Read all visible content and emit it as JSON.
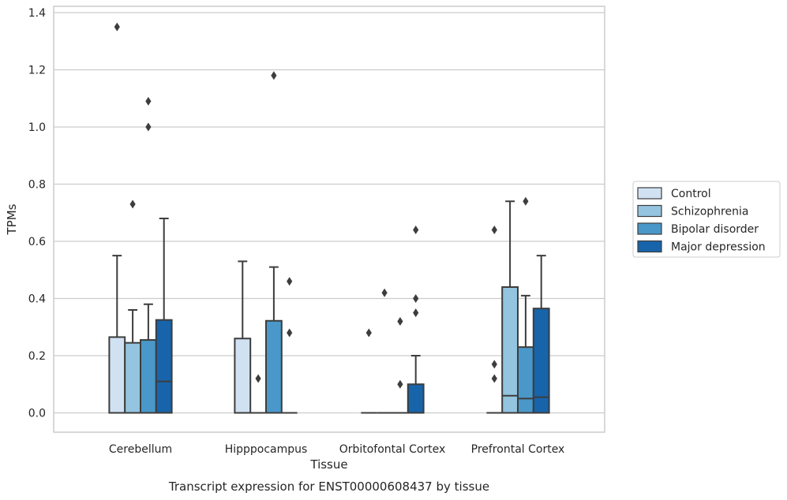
{
  "chart_data": {
    "type": "box",
    "title": "",
    "caption": "Transcript expression for ENST00000608437 by tissue",
    "xlabel": "Tissue",
    "ylabel": "TPMs",
    "ylim": [
      -0.065,
      1.42
    ],
    "yticks": [
      0.0,
      0.2,
      0.4,
      0.6,
      0.8,
      1.0,
      1.2,
      1.4
    ],
    "ytick_labels": [
      "0.0",
      "0.2",
      "0.4",
      "0.6",
      "0.8",
      "1.0",
      "1.2",
      "1.4"
    ],
    "grid": true,
    "legend_position": "right",
    "categories": [
      "Cerebellum",
      "Hipppocampus",
      "Orbitofontal Cortex",
      "Prefrontal Cortex"
    ],
    "series": [
      {
        "name": "Control",
        "color": "#d0e1f2",
        "boxes": [
          {
            "q1": 0.0,
            "median": 0.0,
            "q3": 0.265,
            "whislo": 0.0,
            "whishi": 0.55,
            "fliers": [
              1.35
            ]
          },
          {
            "q1": 0.0,
            "median": 0.0,
            "q3": 0.26,
            "whislo": 0.0,
            "whishi": 0.53,
            "fliers": []
          },
          {
            "q1": 0.0,
            "median": 0.0,
            "q3": 0.0,
            "whislo": 0.0,
            "whishi": 0.0,
            "fliers": [
              0.28
            ]
          },
          {
            "q1": 0.0,
            "median": 0.0,
            "q3": 0.0,
            "whislo": 0.0,
            "whishi": 0.0,
            "fliers": [
              0.64,
              0.17,
              0.12
            ]
          }
        ]
      },
      {
        "name": "Schizophrenia",
        "color": "#94c4df",
        "boxes": [
          {
            "q1": 0.0,
            "median": 0.0,
            "q3": 0.245,
            "whislo": 0.0,
            "whishi": 0.36,
            "fliers": [
              0.73
            ]
          },
          {
            "q1": 0.0,
            "median": 0.0,
            "q3": 0.0,
            "whislo": 0.0,
            "whishi": 0.0,
            "fliers": [
              0.12
            ]
          },
          {
            "q1": 0.0,
            "median": 0.0,
            "q3": 0.0,
            "whislo": 0.0,
            "whishi": 0.0,
            "fliers": [
              0.42
            ]
          },
          {
            "q1": 0.0,
            "median": 0.06,
            "q3": 0.44,
            "whislo": 0.0,
            "whishi": 0.74,
            "fliers": []
          }
        ]
      },
      {
        "name": "Bipolar disorder",
        "color": "#4a98c9",
        "boxes": [
          {
            "q1": 0.0,
            "median": 0.0,
            "q3": 0.255,
            "whislo": 0.0,
            "whishi": 0.38,
            "fliers": [
              1.09,
              1.0
            ]
          },
          {
            "q1": 0.0,
            "median": 0.0,
            "q3": 0.322,
            "whislo": 0.0,
            "whishi": 0.51,
            "fliers": [
              1.18
            ]
          },
          {
            "q1": 0.0,
            "median": 0.0,
            "q3": 0.0,
            "whislo": 0.0,
            "whishi": 0.0,
            "fliers": [
              0.32,
              0.1
            ]
          },
          {
            "q1": 0.0,
            "median": 0.05,
            "q3": 0.23,
            "whislo": 0.0,
            "whishi": 0.41,
            "fliers": [
              0.74
            ]
          }
        ]
      },
      {
        "name": "Major depression",
        "color": "#1764ab",
        "boxes": [
          {
            "q1": 0.0,
            "median": 0.11,
            "q3": 0.325,
            "whislo": 0.0,
            "whishi": 0.68,
            "fliers": []
          },
          {
            "q1": 0.0,
            "median": 0.0,
            "q3": 0.0,
            "whislo": 0.0,
            "whishi": 0.0,
            "fliers": [
              0.46,
              0.28
            ]
          },
          {
            "q1": 0.0,
            "median": 0.0,
            "q3": 0.1,
            "whislo": 0.0,
            "whishi": 0.2,
            "fliers": [
              0.64,
              0.4,
              0.35
            ]
          },
          {
            "q1": 0.0,
            "median": 0.055,
            "q3": 0.365,
            "whislo": 0.0,
            "whishi": 0.55,
            "fliers": []
          }
        ]
      }
    ]
  }
}
